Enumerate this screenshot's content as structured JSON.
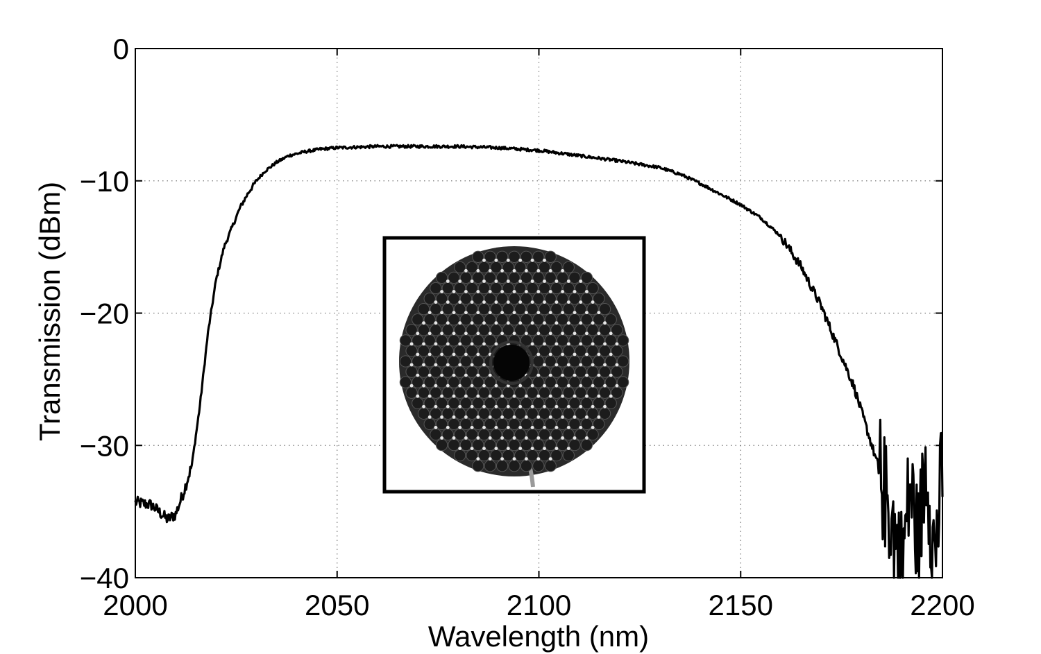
{
  "chart_data": {
    "type": "line",
    "title": "",
    "xlabel": "Wavelength (nm)",
    "ylabel": "Transmission (dBm)",
    "xlim": [
      2000,
      2200
    ],
    "ylim": [
      -40,
      0
    ],
    "xticks": [
      2000,
      2050,
      2100,
      2150,
      2200
    ],
    "yticks": [
      0,
      -10,
      -20,
      -30,
      -40
    ],
    "xtick_labels": [
      "2000",
      "2050",
      "2100",
      "2150",
      "2200"
    ],
    "ytick_labels": [
      "0",
      "−10",
      "−20",
      "−30",
      "−40"
    ],
    "grid": true,
    "legend": "none",
    "line_color": "#000000",
    "series": [
      {
        "x": [
          2000,
          2004,
          2008,
          2010,
          2012,
          2014,
          2016,
          2018,
          2020,
          2022,
          2024,
          2026,
          2028,
          2030,
          2032,
          2035,
          2038,
          2042,
          2046,
          2050,
          2055,
          2060,
          2070,
          2080,
          2090,
          2100,
          2110,
          2120,
          2130,
          2135,
          2140,
          2145,
          2150,
          2155,
          2160,
          2165,
          2170,
          2174,
          2178,
          2181,
          2184,
          2186,
          2188,
          2190,
          2192,
          2194,
          2196,
          2198,
          2200
        ],
        "y": [
          -34.3,
          -34.5,
          -35.6,
          -35.2,
          -33.5,
          -31.5,
          -27.0,
          -21.5,
          -17.5,
          -15.0,
          -13.5,
          -12.0,
          -10.9,
          -10.0,
          -9.3,
          -8.6,
          -8.1,
          -7.8,
          -7.6,
          -7.5,
          -7.45,
          -7.4,
          -7.4,
          -7.4,
          -7.5,
          -7.7,
          -8.1,
          -8.5,
          -9.0,
          -9.5,
          -10.2,
          -11.0,
          -11.8,
          -12.8,
          -14.2,
          -16.5,
          -19.5,
          -22.5,
          -25.5,
          -28.5,
          -31.5,
          -34.0,
          -36.5,
          -39.0,
          -33.0,
          -37.5,
          -31.0,
          -38.5,
          -32.0
        ]
      }
    ],
    "inset": {
      "type": "image",
      "subject": "hollow-core photonic crystal fiber cross-section",
      "location": "center"
    }
  }
}
